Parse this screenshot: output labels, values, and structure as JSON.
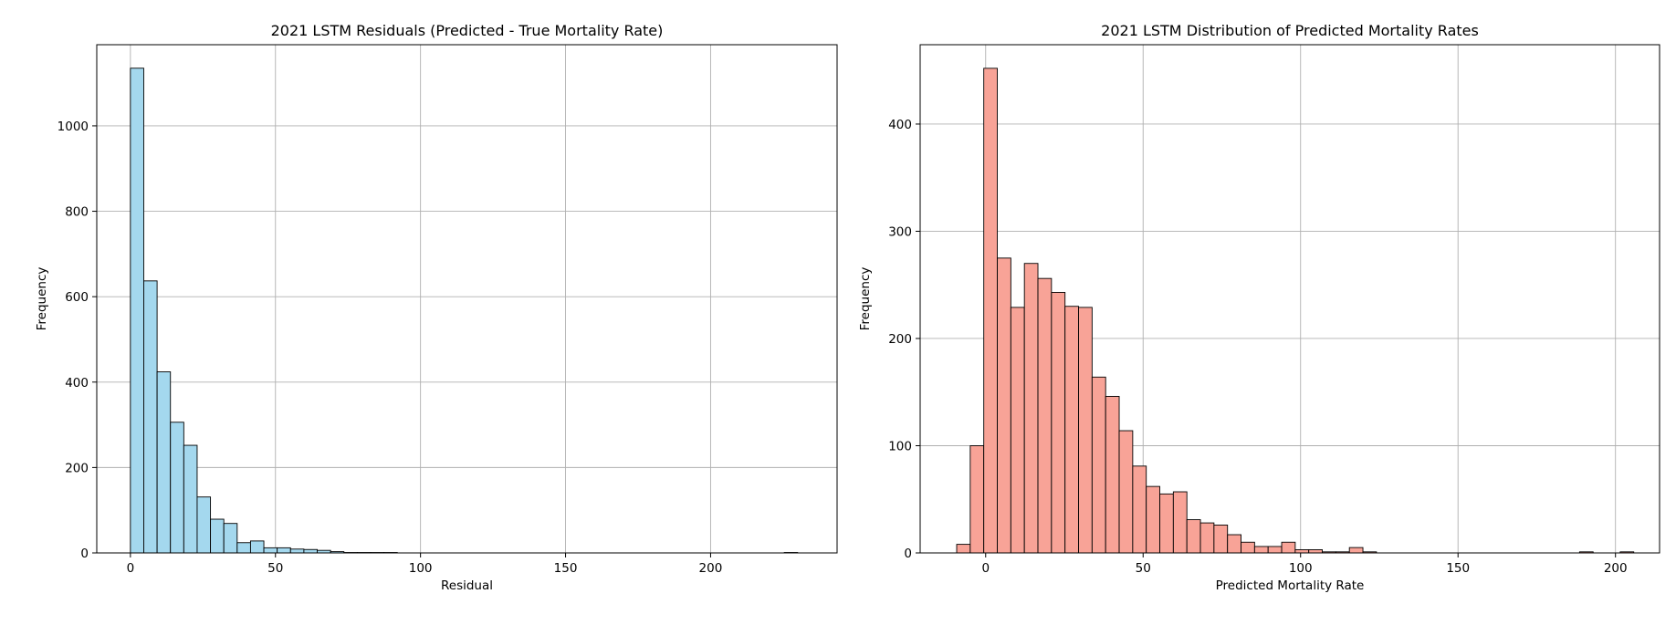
{
  "chart_data": [
    {
      "type": "bar",
      "title": "2021 LSTM Residuals (Predicted - True Mortality Rate)",
      "xlabel": "Residual",
      "ylabel": "Frequency",
      "xlim": [
        -11.6,
        243.6
      ],
      "ylim": [
        0,
        1190
      ],
      "xticks": [
        0,
        50,
        100,
        150,
        200
      ],
      "yticks": [
        0,
        200,
        400,
        600,
        800,
        1000
      ],
      "grid": true,
      "color": "#a4d8ee",
      "edge_color": "#000000",
      "bin_start": 0,
      "bin_width": 4.6,
      "values": [
        1135,
        637,
        424,
        306,
        252,
        131,
        79,
        69,
        24,
        28,
        12,
        12,
        9,
        8,
        6,
        3,
        1,
        1,
        1,
        1,
        0,
        0,
        0,
        0,
        0,
        0,
        0,
        0,
        0,
        0,
        0,
        0,
        0,
        0,
        0,
        0,
        0,
        0,
        0,
        0,
        0,
        0,
        0,
        0,
        0,
        0,
        0,
        0,
        0,
        1
      ]
    },
    {
      "type": "bar",
      "title": "2021 LSTM Distribution of Predicted Mortality Rates",
      "xlabel": "Predicted Mortality Rate",
      "ylabel": "Frequency",
      "xlim": [
        -20.8,
        214.0
      ],
      "ylim": [
        0,
        474
      ],
      "xticks": [
        0,
        50,
        100,
        150,
        200
      ],
      "yticks": [
        0,
        100,
        200,
        300,
        400
      ],
      "grid": true,
      "color": "#f8a397",
      "edge_color": "#000000",
      "bin_start": -9.2,
      "bin_width": 4.3,
      "values": [
        8,
        100,
        452,
        275,
        229,
        270,
        256,
        243,
        230,
        229,
        164,
        146,
        114,
        81,
        62,
        55,
        57,
        31,
        28,
        26,
        17,
        10,
        6,
        6,
        10,
        3,
        3,
        1,
        1,
        5,
        1,
        0,
        0,
        0,
        0,
        0,
        0,
        0,
        0,
        0,
        0,
        0,
        0,
        0,
        0,
        0,
        1,
        0,
        0,
        1
      ]
    }
  ]
}
